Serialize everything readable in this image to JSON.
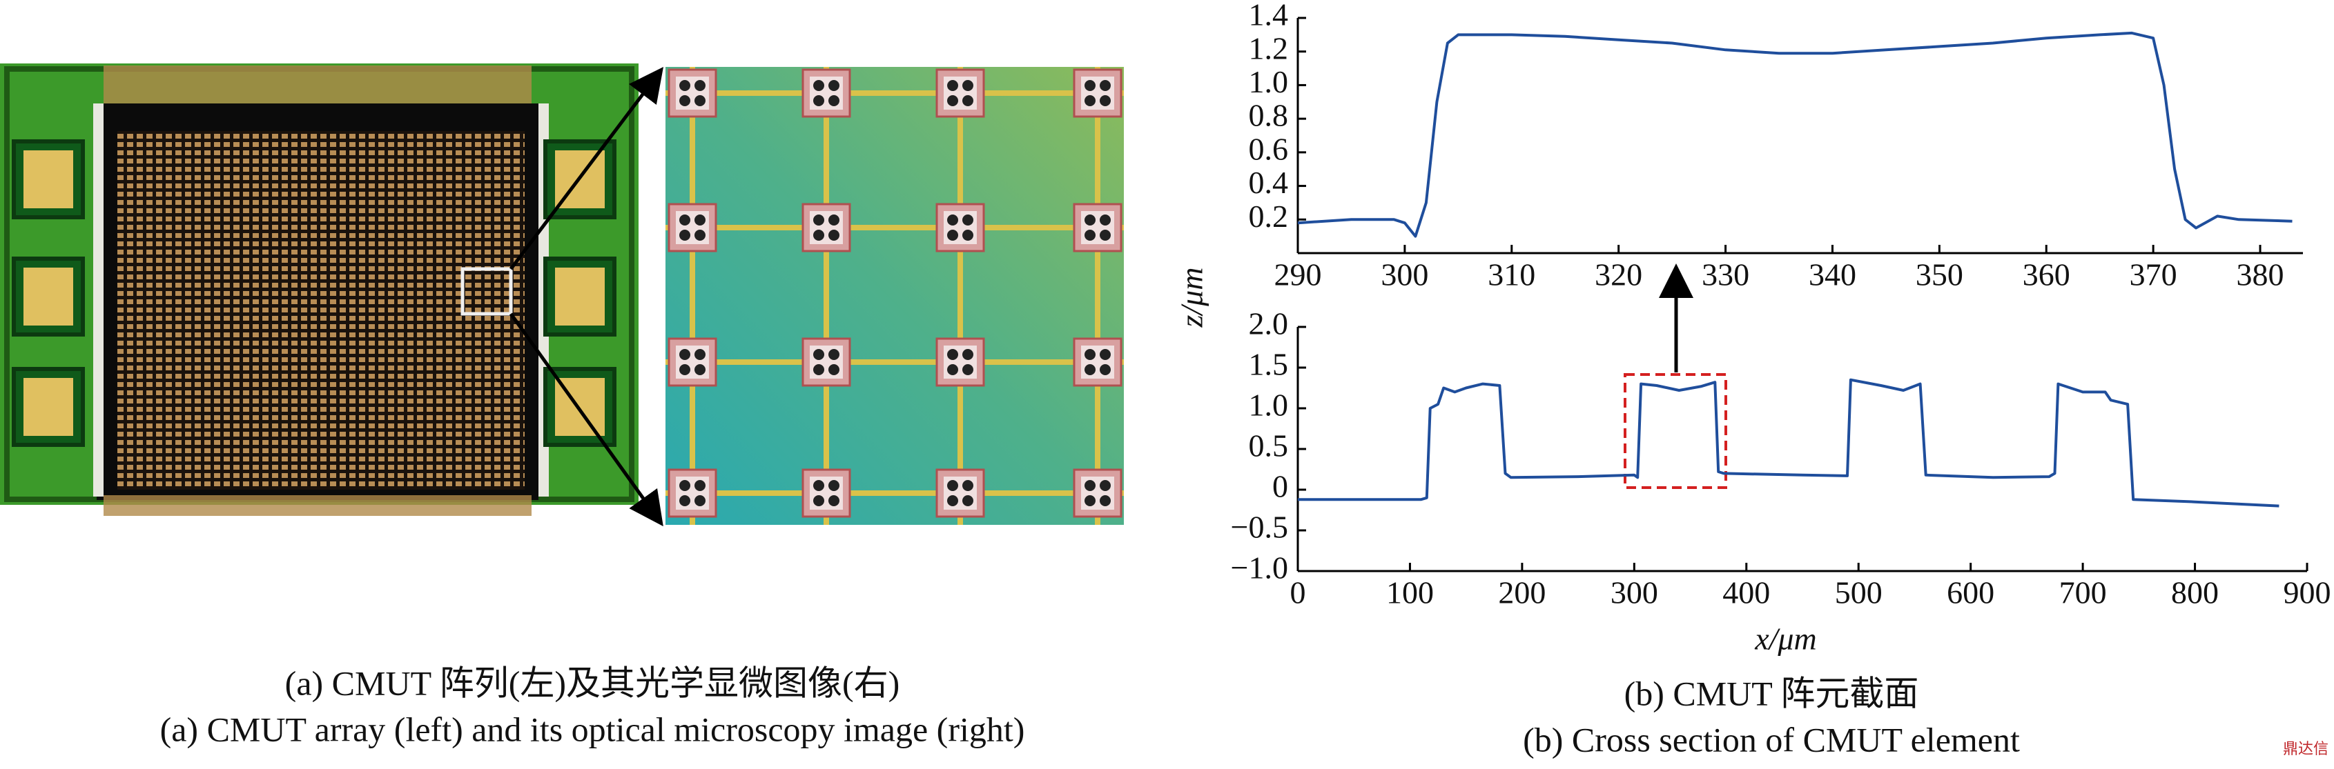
{
  "chart_data": [
    {
      "type": "line",
      "x": [
        290,
        295,
        299,
        300,
        301,
        302,
        303,
        304,
        305,
        310,
        315,
        320,
        325,
        330,
        335,
        340,
        345,
        350,
        355,
        360,
        365,
        368,
        370,
        371,
        372,
        373,
        374,
        376,
        378,
        383
      ],
      "series": [
        {
          "color": "#1f4e9c",
          "values": [
            0.18,
            0.2,
            0.2,
            0.18,
            0.1,
            0.3,
            0.9,
            1.25,
            1.3,
            1.3,
            1.29,
            1.27,
            1.25,
            1.21,
            1.19,
            1.19,
            1.21,
            1.23,
            1.25,
            1.28,
            1.3,
            1.31,
            1.28,
            1.0,
            0.5,
            0.2,
            0.15,
            0.22,
            0.2,
            0.19
          ]
        }
      ],
      "xlim": [
        290,
        384
      ],
      "xticks": [
        290,
        300,
        310,
        320,
        330,
        340,
        350,
        360,
        370,
        380
      ],
      "ylim": [
        0,
        1.4
      ],
      "yticks": [
        0.2,
        0.4,
        0.6,
        0.8,
        {
          "value": 1.0,
          "label": "1.0"
        },
        1.2,
        1.4
      ]
    },
    {
      "type": "line",
      "xlabel": "x/μm",
      "ylabel": "z/μm",
      "x": [
        0,
        50,
        110,
        115,
        118,
        125,
        130,
        140,
        150,
        165,
        180,
        185,
        190,
        250,
        300,
        303,
        306,
        320,
        340,
        360,
        372,
        375,
        380,
        450,
        490,
        493,
        520,
        540,
        555,
        560,
        620,
        670,
        675,
        678,
        700,
        720,
        725,
        740,
        745,
        800,
        875
      ],
      "series": [
        {
          "color": "#1f4e9c",
          "values": [
            -0.12,
            -0.12,
            -0.12,
            -0.1,
            1.0,
            1.05,
            1.25,
            1.2,
            1.25,
            1.3,
            1.28,
            0.2,
            0.15,
            0.16,
            0.18,
            0.15,
            1.3,
            1.28,
            1.22,
            1.27,
            1.32,
            0.22,
            0.2,
            0.18,
            0.17,
            1.35,
            1.28,
            1.22,
            1.3,
            0.18,
            0.15,
            0.16,
            0.2,
            1.3,
            1.2,
            1.2,
            1.1,
            1.05,
            -0.12,
            -0.15,
            -0.2
          ]
        }
      ],
      "xlim": [
        0,
        900
      ],
      "xticks": [
        0,
        100,
        200,
        300,
        400,
        500,
        600,
        700,
        800,
        900
      ],
      "ylim": [
        -1,
        2
      ],
      "yticks": [
        {
          "value": -1.0,
          "label": "−1.0"
        },
        {
          "value": -0.5,
          "label": "−0.5"
        },
        0,
        0.5,
        {
          "value": 1.0,
          "label": "1.0"
        },
        1.5,
        {
          "value": 2.0,
          "label": "2.0"
        }
      ]
    }
  ],
  "captions": {
    "a_zh": "(a) CMUT 阵列(左)及其光学显微图像(右)",
    "a_en": "(a) CMUT array (left) and its optical microscopy image (right)",
    "b_zh": "(b) CMUT 阵元截面",
    "b_en": "(b) Cross section of CMUT element"
  },
  "watermark": "鼎达信"
}
